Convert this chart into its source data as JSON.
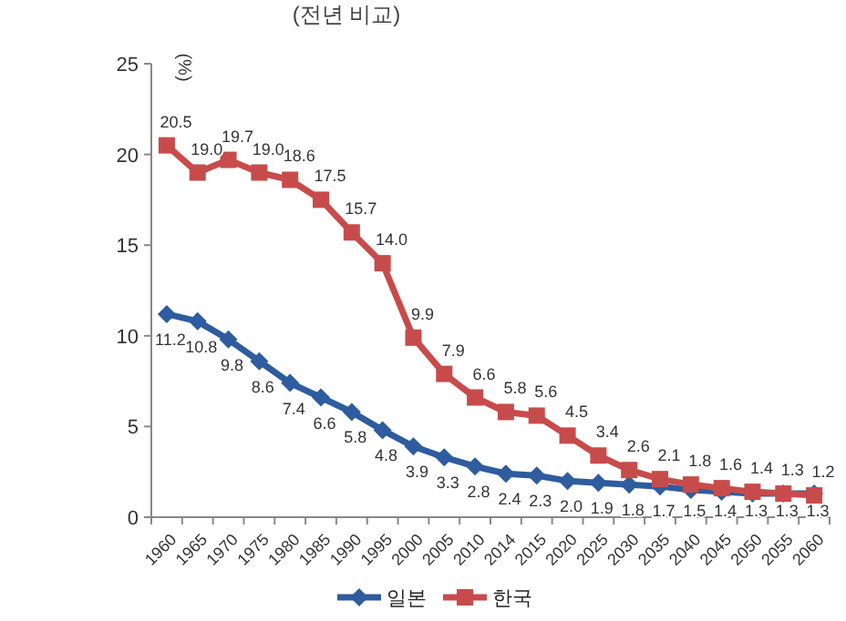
{
  "chart_data": {
    "type": "line",
    "subtitle": "(전년 비교)",
    "ylabel": "(%)",
    "categories": [
      "1960",
      "1965",
      "1970",
      "1975",
      "1980",
      "1985",
      "1990",
      "1995",
      "2000",
      "2005",
      "2010",
      "2014",
      "2015",
      "2020",
      "2025",
      "2030",
      "2035",
      "2040",
      "2045",
      "2050",
      "2055",
      "2060"
    ],
    "series": [
      {
        "name": "일본",
        "color": "#2e5c9e",
        "marker": "diamond",
        "values": [
          11.2,
          10.8,
          9.8,
          8.6,
          7.4,
          6.6,
          5.8,
          4.8,
          3.9,
          3.3,
          2.8,
          2.4,
          2.3,
          2.0,
          1.9,
          1.8,
          1.7,
          1.5,
          1.4,
          1.3,
          1.3,
          1.3
        ],
        "value_labels": [
          "11.2",
          "10.8",
          "9.8",
          "8.6",
          "7.4",
          "6.6",
          "5.8",
          "4.8",
          "3.9",
          "3.3",
          "2.8",
          "2.4",
          "2.3",
          "2.0",
          "1.9",
          "1.8",
          "1.7",
          "1.5",
          "1.4",
          "1.3",
          "1.3",
          "1.3"
        ]
      },
      {
        "name": "한국",
        "color": "#c84b4b",
        "marker": "square",
        "values": [
          20.5,
          19.0,
          19.7,
          19.0,
          18.6,
          17.5,
          15.7,
          14.0,
          9.9,
          7.9,
          6.6,
          5.8,
          5.6,
          4.5,
          3.4,
          2.6,
          2.1,
          1.8,
          1.6,
          1.4,
          1.3,
          1.2
        ],
        "value_labels": [
          "20.5",
          "19.0",
          "19.7",
          "19.0",
          "18.6",
          "17.5",
          "15.7",
          "14.0",
          "9.9",
          "7.9",
          "6.6",
          "5.8",
          "5.6",
          "4.5",
          "3.4",
          "2.6",
          "2.1",
          "1.8",
          "1.6",
          "1.4",
          "1.3",
          "1.2"
        ]
      }
    ],
    "ylim": [
      0,
      25
    ],
    "yticks": [
      0,
      5,
      10,
      15,
      20,
      25
    ],
    "legend": "bottom"
  }
}
